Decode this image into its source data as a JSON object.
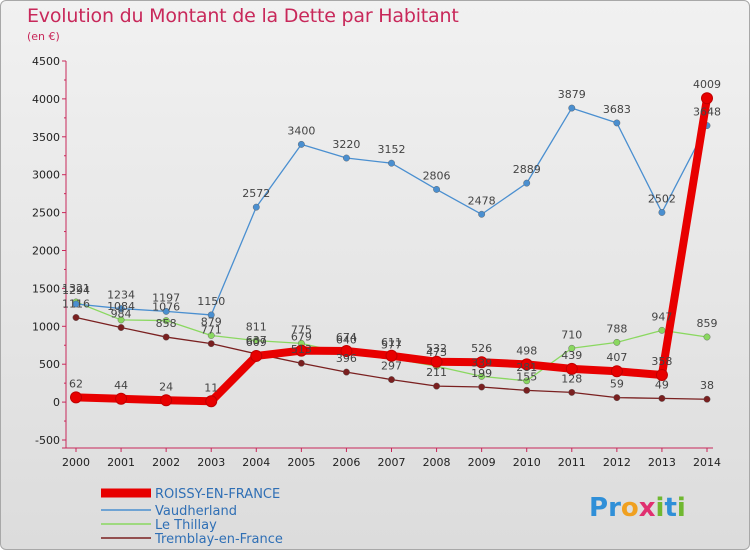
{
  "title": "Evolution du Montant de la Dette par Habitant",
  "unit": "(en €)",
  "logo": {
    "text": "Proxiti",
    "letters": [
      {
        "ch": "P",
        "color": "#2f8fd8"
      },
      {
        "ch": "r",
        "color": "#2f8fd8"
      },
      {
        "ch": "o",
        "color": "#f0a020"
      },
      {
        "ch": "x",
        "color": "#e03070"
      },
      {
        "ch": "i",
        "color": "#70b830"
      },
      {
        "ch": "t",
        "color": "#2f8fd8"
      },
      {
        "ch": "i",
        "color": "#70b830"
      }
    ]
  },
  "chart_data": {
    "type": "line",
    "title": "Evolution du Montant de la Dette par Habitant",
    "ylabel": "(en €)",
    "xlabel": "",
    "x": [
      "2000",
      "2001",
      "2002",
      "2003",
      "2004",
      "2005",
      "2006",
      "2007",
      "2008",
      "2009",
      "2010",
      "2011",
      "2012",
      "2013",
      "2014"
    ],
    "ylim": [
      -500,
      4500
    ],
    "yticks": [
      -500,
      0,
      500,
      1000,
      1500,
      2000,
      2500,
      3000,
      3500,
      4000,
      4500
    ],
    "grid": false,
    "legend": "bottom-left",
    "series": [
      {
        "name": "ROISSY-EN-FRANCE",
        "color": "#e80000",
        "width": 8,
        "values": [
          62,
          44,
          24,
          11,
          609,
          679,
          674,
          611,
          532,
          526,
          498,
          439,
          407,
          358,
          4009
        ]
      },
      {
        "name": "Vaudherland",
        "color": "#4a8fd0",
        "width": 1.3,
        "values": [
          1294,
          1234,
          1197,
          1150,
          2572,
          3400,
          3220,
          3152,
          2806,
          2478,
          2889,
          3879,
          3683,
          2502,
          3648
        ]
      },
      {
        "name": "Le Thillay",
        "color": "#8ad860",
        "width": 1.3,
        "values": [
          1321,
          1084,
          1076,
          879,
          811,
          775,
          640,
          577,
          473,
          339,
          281,
          710,
          788,
          947,
          859
        ]
      },
      {
        "name": "Tremblay-en-France",
        "color": "#7a2020",
        "width": 1.3,
        "values": [
          1116,
          984,
          858,
          771,
          637,
          513,
          396,
          297,
          211,
          199,
          155,
          128,
          59,
          49,
          38
        ]
      }
    ]
  }
}
